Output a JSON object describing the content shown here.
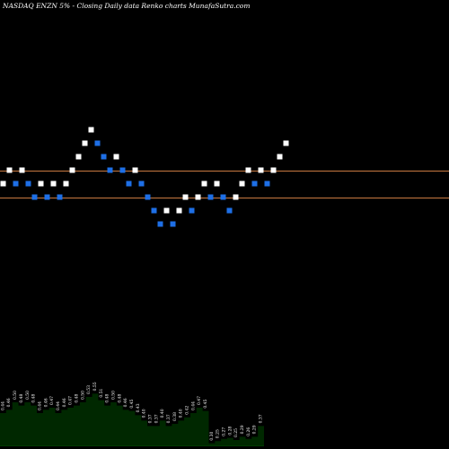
{
  "chart_data": {
    "type": "renko",
    "title": "NASDAQ ENZN  5% - Closing Daily data  Renko  charts MunafaSutra.com",
    "colors": {
      "background": "#000000",
      "up_brick": "#ffffff",
      "down_brick": "#1e6fe6",
      "reference_line": "#c87941",
      "volume_fill": "#002800"
    },
    "reference_lines": [
      0.45,
      0.43
    ],
    "bricks": [
      {
        "i": 0,
        "dir": "up",
        "y": 0.44
      },
      {
        "i": 1,
        "dir": "up",
        "y": 0.45
      },
      {
        "i": 2,
        "dir": "down",
        "y": 0.44
      },
      {
        "i": 3,
        "dir": "up",
        "y": 0.45
      },
      {
        "i": 4,
        "dir": "down",
        "y": 0.44
      },
      {
        "i": 5,
        "dir": "down",
        "y": 0.43
      },
      {
        "i": 6,
        "dir": "up",
        "y": 0.44
      },
      {
        "i": 7,
        "dir": "down",
        "y": 0.43
      },
      {
        "i": 8,
        "dir": "up",
        "y": 0.44
      },
      {
        "i": 9,
        "dir": "down",
        "y": 0.43
      },
      {
        "i": 10,
        "dir": "up",
        "y": 0.44
      },
      {
        "i": 11,
        "dir": "up",
        "y": 0.45
      },
      {
        "i": 12,
        "dir": "up",
        "y": 0.46
      },
      {
        "i": 13,
        "dir": "up",
        "y": 0.47
      },
      {
        "i": 14,
        "dir": "up",
        "y": 0.48
      },
      {
        "i": 15,
        "dir": "down",
        "y": 0.47
      },
      {
        "i": 16,
        "dir": "down",
        "y": 0.46
      },
      {
        "i": 17,
        "dir": "down",
        "y": 0.45
      },
      {
        "i": 18,
        "dir": "up",
        "y": 0.46
      },
      {
        "i": 19,
        "dir": "down",
        "y": 0.45
      },
      {
        "i": 20,
        "dir": "down",
        "y": 0.44
      },
      {
        "i": 21,
        "dir": "up",
        "y": 0.45
      },
      {
        "i": 22,
        "dir": "down",
        "y": 0.44
      },
      {
        "i": 23,
        "dir": "down",
        "y": 0.43
      },
      {
        "i": 24,
        "dir": "down",
        "y": 0.42
      },
      {
        "i": 25,
        "dir": "down",
        "y": 0.41
      },
      {
        "i": 26,
        "dir": "up",
        "y": 0.42
      },
      {
        "i": 27,
        "dir": "down",
        "y": 0.41
      },
      {
        "i": 28,
        "dir": "up",
        "y": 0.42
      },
      {
        "i": 29,
        "dir": "up",
        "y": 0.43
      },
      {
        "i": 30,
        "dir": "down",
        "y": 0.42
      },
      {
        "i": 31,
        "dir": "up",
        "y": 0.43
      },
      {
        "i": 32,
        "dir": "up",
        "y": 0.44
      },
      {
        "i": 33,
        "dir": "down",
        "y": 0.43
      },
      {
        "i": 34,
        "dir": "up",
        "y": 0.44
      },
      {
        "i": 35,
        "dir": "down",
        "y": 0.43
      },
      {
        "i": 36,
        "dir": "down",
        "y": 0.42
      },
      {
        "i": 37,
        "dir": "up",
        "y": 0.43
      },
      {
        "i": 38,
        "dir": "up",
        "y": 0.44
      },
      {
        "i": 39,
        "dir": "up",
        "y": 0.45
      },
      {
        "i": 40,
        "dir": "down",
        "y": 0.44
      },
      {
        "i": 41,
        "dir": "up",
        "y": 0.45
      },
      {
        "i": 42,
        "dir": "down",
        "y": 0.44
      },
      {
        "i": 43,
        "dir": "up",
        "y": 0.45
      },
      {
        "i": 44,
        "dir": "up",
        "y": 0.46
      },
      {
        "i": 45,
        "dir": "up",
        "y": 0.47
      }
    ],
    "price_axis": {
      "min": 0.39,
      "max": 0.49
    },
    "volume_panel": {
      "label_values": [
        "0.44",
        "0.46",
        "0.50",
        "0.48",
        "0.50",
        "0.48",
        "0.44",
        "0.46",
        "0.47",
        "0.44",
        "0.46",
        "0.47",
        "0.48",
        "0.50",
        "0.53",
        "0.55",
        "0.51",
        "0.48",
        "0.50",
        "0.48",
        "0.46",
        "0.45",
        "0.43",
        "0.40",
        "0.37",
        "0.37",
        "0.40",
        "0.37",
        "0.38",
        "0.40",
        "0.42",
        "0.44",
        "0.47",
        "0.45",
        "0.30",
        "0.25",
        "0.27",
        "0.28",
        "0.25",
        "0.29",
        "0.26",
        "0.29",
        "0.37"
      ],
      "heights": [
        0.3,
        0.33,
        0.4,
        0.37,
        0.4,
        0.37,
        0.3,
        0.33,
        0.35,
        0.3,
        0.33,
        0.35,
        0.37,
        0.4,
        0.45,
        0.48,
        0.42,
        0.37,
        0.4,
        0.37,
        0.33,
        0.32,
        0.28,
        0.23,
        0.18,
        0.18,
        0.23,
        0.18,
        0.2,
        0.23,
        0.26,
        0.3,
        0.35,
        0.32,
        0.02,
        0.04,
        0.06,
        0.07,
        0.05,
        0.08,
        0.06,
        0.08,
        0.18
      ]
    }
  }
}
